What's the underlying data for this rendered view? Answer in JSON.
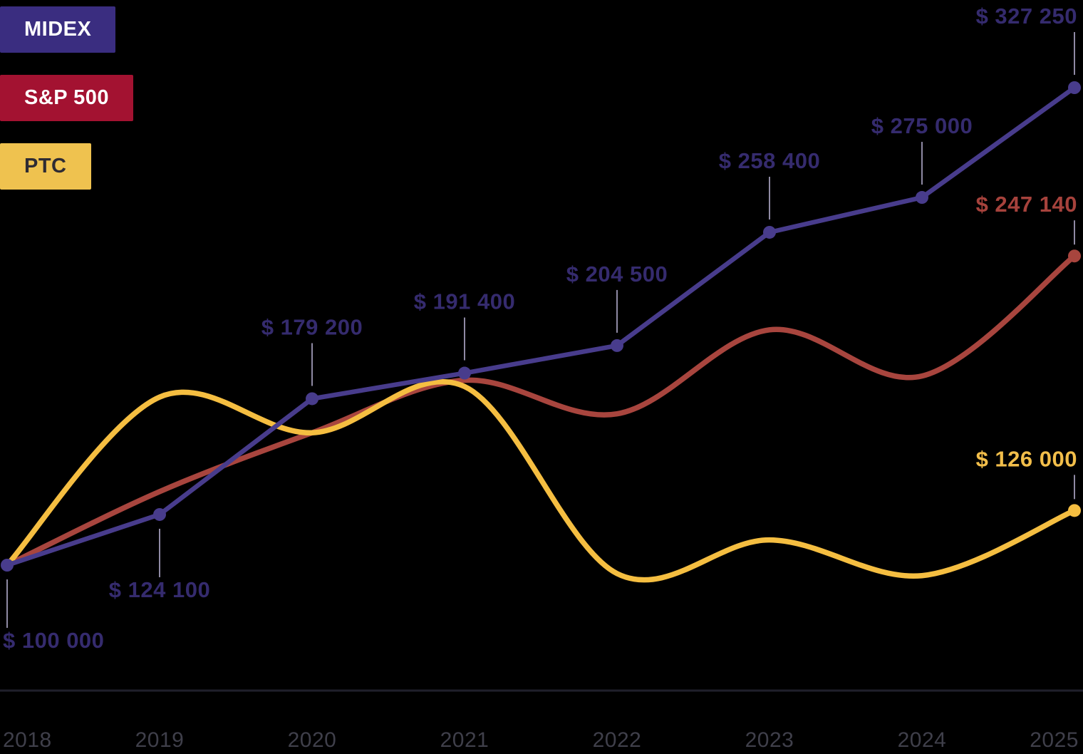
{
  "legend": {
    "position": "top-left"
  },
  "chart_data": {
    "type": "line",
    "title": "",
    "xlabel": "",
    "ylabel": "",
    "grid": false,
    "legend_position": "top-left",
    "x": [
      2018,
      2019,
      2020,
      2021,
      2022,
      2023,
      2024,
      2025
    ],
    "x_tick_labels": [
      "2018",
      "2019",
      "2020",
      "2021",
      "2022",
      "2023",
      "2024",
      "2025"
    ],
    "ylim": [
      85000,
      345000
    ],
    "series": [
      {
        "name": "MIDEX",
        "type": "line",
        "smooth": false,
        "marker": "circle",
        "color": "#483C8C",
        "label_color": "#352B6E",
        "legend_bg": "#3A2D80",
        "legend_text_color": "#FFFFFF",
        "values": [
          100000,
          124100,
          179200,
          191400,
          204500,
          258400,
          275000,
          327250
        ],
        "point_labels": [
          "$ 100 000",
          "$ 124 100",
          "$ 179 200",
          "$ 191 400",
          "$ 204 500",
          "$ 258 400",
          "$ 275 000",
          "$ 327 250"
        ],
        "label_positions": [
          "below",
          "below",
          "above",
          "above",
          "above",
          "above",
          "above",
          "above"
        ]
      },
      {
        "name": "S&P 500",
        "type": "line",
        "smooth": true,
        "marker": "end-circle",
        "color": "#A8453E",
        "label_color": "#A6423C",
        "legend_bg": "#A31231",
        "legend_text_color": "#FFFFFF",
        "values": [
          100000,
          135000,
          163000,
          188000,
          172000,
          212000,
          190000,
          247140
        ],
        "end_label": "$ 247 140"
      },
      {
        "name": "PTC",
        "type": "line",
        "smooth": true,
        "marker": "end-circle",
        "color": "#F5BE41",
        "label_color": "#F2BE4A",
        "legend_bg": "#EFC24F",
        "legend_text_color": "#2E2B33",
        "values": [
          100000,
          180000,
          163000,
          185000,
          96000,
          112000,
          95000,
          126000
        ],
        "end_label": "$ 126 000"
      }
    ],
    "colors": {
      "background": "#000000",
      "axis_line": "#20202B",
      "tick_label": "#3F3F4A",
      "connector": "#8F8AA4"
    }
  }
}
